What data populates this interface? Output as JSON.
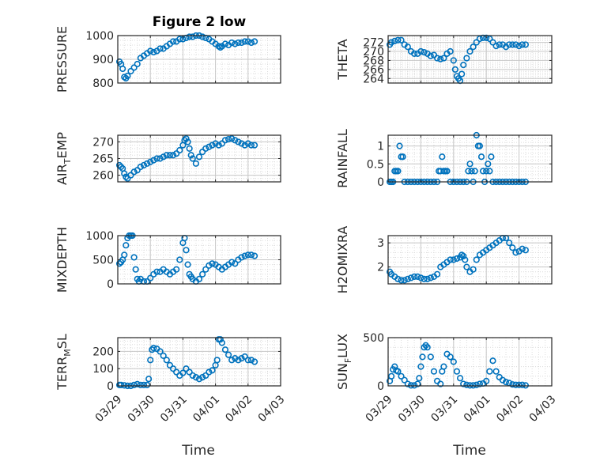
{
  "figure_title": "Figure 2 low",
  "colors": {
    "marker": "#0072BD",
    "axis": "#262626",
    "grid": "#dcdcdc",
    "background": "#ffffff"
  },
  "x_axis": {
    "label": "Time",
    "ticks": [
      "03/29",
      "03/30",
      "03/31",
      "04/01",
      "04/02",
      "04/03"
    ],
    "range": [
      0,
      5
    ]
  },
  "chart_data": [
    {
      "type": "scatter",
      "title": "Figure 2 low",
      "ylabel": "PRESSURE",
      "ylim": [
        800,
        1000
      ],
      "yticks": [
        "800",
        "900",
        "1000"
      ],
      "ytick_values": [
        800,
        900,
        1000
      ],
      "grid": true,
      "series": [
        {
          "marker": "circle"
        }
      ],
      "x": [
        0.05,
        0.1,
        0.15,
        0.2,
        0.25,
        0.3,
        0.4,
        0.5,
        0.6,
        0.7,
        0.8,
        0.9,
        1.0,
        1.1,
        1.2,
        1.3,
        1.4,
        1.5,
        1.6,
        1.7,
        1.8,
        1.9,
        2.0,
        2.1,
        2.2,
        2.3,
        2.4,
        2.5,
        2.6,
        2.7,
        2.8,
        2.9,
        3.0,
        3.1,
        3.15,
        3.2,
        3.3,
        3.4,
        3.5,
        3.6,
        3.7,
        3.8,
        3.9,
        4.0,
        4.1,
        4.2
      ],
      "y": [
        890,
        880,
        860,
        825,
        820,
        830,
        850,
        865,
        880,
        905,
        915,
        925,
        935,
        930,
        935,
        945,
        945,
        955,
        965,
        975,
        975,
        985,
        985,
        990,
        995,
        995,
        1000,
        1000,
        995,
        990,
        985,
        975,
        965,
        955,
        950,
        955,
        965,
        960,
        970,
        965,
        970,
        970,
        975,
        975,
        970,
        975
      ]
    },
    {
      "type": "scatter",
      "ylabel": "THETA",
      "ylim": [
        263,
        273.5
      ],
      "yticks": [
        "264",
        "266",
        "268",
        "270",
        "272"
      ],
      "ytick_values": [
        264,
        266,
        268,
        270,
        272
      ],
      "grid": true,
      "series": [
        {
          "marker": "circle"
        }
      ],
      "x": [
        0.05,
        0.1,
        0.2,
        0.3,
        0.4,
        0.5,
        0.6,
        0.7,
        0.8,
        0.9,
        1.0,
        1.1,
        1.2,
        1.3,
        1.4,
        1.5,
        1.6,
        1.7,
        1.8,
        1.9,
        2.0,
        2.05,
        2.1,
        2.15,
        2.2,
        2.25,
        2.3,
        2.4,
        2.5,
        2.6,
        2.7,
        2.8,
        2.9,
        3.0,
        3.1,
        3.2,
        3.3,
        3.4,
        3.5,
        3.6,
        3.7,
        3.8,
        3.9,
        4.0,
        4.1,
        4.2
      ],
      "y": [
        271.5,
        272,
        272.3,
        272.5,
        272.5,
        271.5,
        271,
        270,
        269.5,
        269.5,
        270,
        269.8,
        269.5,
        269,
        269.2,
        268.5,
        268.3,
        268.5,
        269.5,
        270,
        268,
        266,
        264.5,
        264,
        263.5,
        265,
        267,
        268.5,
        270,
        271,
        272,
        272.8,
        273,
        273,
        272.8,
        272,
        271.2,
        271.5,
        271.5,
        271,
        271.5,
        271.5,
        271.5,
        271.2,
        271.5,
        271.5
      ]
    },
    {
      "type": "scatter",
      "ylabel": "AIR_TEMP",
      "ylim": [
        258,
        272
      ],
      "yticks": [
        "260",
        "265",
        "270"
      ],
      "ytick_values": [
        260,
        265,
        270
      ],
      "grid": true,
      "series": [
        {
          "marker": "circle"
        }
      ],
      "x": [
        0.05,
        0.1,
        0.15,
        0.2,
        0.25,
        0.3,
        0.4,
        0.5,
        0.6,
        0.7,
        0.8,
        0.9,
        1.0,
        1.1,
        1.2,
        1.3,
        1.4,
        1.5,
        1.6,
        1.7,
        1.8,
        1.9,
        2.0,
        2.05,
        2.1,
        2.15,
        2.2,
        2.25,
        2.3,
        2.4,
        2.5,
        2.6,
        2.7,
        2.8,
        2.9,
        3.0,
        3.1,
        3.2,
        3.3,
        3.4,
        3.5,
        3.6,
        3.7,
        3.8,
        3.9,
        4.0,
        4.1,
        4.2
      ],
      "y": [
        263,
        262.5,
        262,
        260.5,
        259.5,
        259,
        260,
        261,
        261.5,
        262.5,
        263,
        263.5,
        264,
        264.5,
        265,
        265,
        265.5,
        266,
        266,
        266,
        266.5,
        267.5,
        269,
        270.5,
        271,
        270,
        268,
        266,
        265,
        263.5,
        265.5,
        267,
        268,
        268.5,
        269,
        269.5,
        269,
        269.5,
        270.5,
        270.8,
        271,
        270.5,
        270,
        269.5,
        269,
        269.5,
        269,
        269
      ]
    },
    {
      "type": "scatter",
      "ylabel": "RAINFALL",
      "ylim": [
        0,
        1.3
      ],
      "yticks": [
        "0",
        "0.5",
        "1"
      ],
      "ytick_values": [
        0,
        0.5,
        1
      ],
      "grid": true,
      "series": [
        {
          "marker": "circle"
        }
      ],
      "x": [
        0.05,
        0.1,
        0.15,
        0.2,
        0.25,
        0.3,
        0.35,
        0.4,
        0.45,
        0.5,
        0.6,
        0.7,
        0.8,
        0.9,
        1.0,
        1.1,
        1.2,
        1.3,
        1.4,
        1.5,
        1.55,
        1.6,
        1.65,
        1.7,
        1.75,
        1.8,
        1.9,
        2.0,
        2.1,
        2.2,
        2.3,
        2.4,
        2.45,
        2.5,
        2.55,
        2.6,
        2.65,
        2.7,
        2.75,
        2.8,
        2.85,
        2.9,
        2.95,
        3.0,
        3.05,
        3.1,
        3.15,
        3.2,
        3.3,
        3.4,
        3.5,
        3.6,
        3.7,
        3.8,
        3.9,
        4.0,
        4.1,
        4.2
      ],
      "y": [
        0,
        0,
        0,
        0.3,
        0.3,
        0.3,
        1.0,
        0.7,
        0.7,
        0,
        0,
        0,
        0,
        0,
        0,
        0,
        0,
        0,
        0,
        0,
        0.3,
        0.3,
        0.7,
        0.3,
        0.3,
        0.3,
        0,
        0,
        0,
        0,
        0,
        0,
        0.3,
        0.5,
        0.3,
        0,
        0.3,
        1.3,
        1.0,
        1.0,
        0.7,
        0.3,
        0,
        0.3,
        0.5,
        0.3,
        0.7,
        0,
        0,
        0,
        0,
        0,
        0,
        0,
        0,
        0,
        0,
        0
      ]
    },
    {
      "type": "scatter",
      "ylabel": "MIXDEPTH",
      "ylim": [
        0,
        1000
      ],
      "yticks": [
        "0",
        "500",
        "1000"
      ],
      "ytick_values": [
        0,
        500,
        1000
      ],
      "grid": true,
      "series": [
        {
          "marker": "circle"
        }
      ],
      "x": [
        0.05,
        0.1,
        0.15,
        0.2,
        0.25,
        0.3,
        0.35,
        0.4,
        0.45,
        0.5,
        0.55,
        0.6,
        0.65,
        0.7,
        0.8,
        0.9,
        1.0,
        1.1,
        1.2,
        1.3,
        1.4,
        1.5,
        1.6,
        1.7,
        1.8,
        1.9,
        2.0,
        2.05,
        2.1,
        2.15,
        2.2,
        2.25,
        2.3,
        2.4,
        2.5,
        2.6,
        2.7,
        2.8,
        2.9,
        3.0,
        3.1,
        3.2,
        3.3,
        3.4,
        3.5,
        3.6,
        3.7,
        3.8,
        3.9,
        4.0,
        4.1,
        4.2
      ],
      "y": [
        420,
        450,
        500,
        600,
        800,
        950,
        1000,
        1000,
        1000,
        550,
        300,
        100,
        50,
        100,
        50,
        50,
        120,
        200,
        250,
        250,
        300,
        250,
        200,
        250,
        300,
        500,
        850,
        950,
        700,
        400,
        200,
        150,
        100,
        50,
        100,
        200,
        300,
        380,
        420,
        400,
        350,
        300,
        350,
        400,
        450,
        420,
        500,
        550,
        580,
        600,
        600,
        580
      ]
    },
    {
      "type": "scatter",
      "ylabel": "H2OMIXRA",
      "ylim": [
        1.3,
        3.3
      ],
      "yticks": [
        "2",
        "3"
      ],
      "ytick_values": [
        2,
        3
      ],
      "grid": true,
      "series": [
        {
          "marker": "circle"
        }
      ],
      "x": [
        0.05,
        0.1,
        0.2,
        0.3,
        0.4,
        0.5,
        0.6,
        0.7,
        0.8,
        0.9,
        1.0,
        1.1,
        1.2,
        1.3,
        1.4,
        1.5,
        1.6,
        1.7,
        1.8,
        1.9,
        2.0,
        2.1,
        2.2,
        2.25,
        2.3,
        2.35,
        2.4,
        2.5,
        2.6,
        2.7,
        2.8,
        2.9,
        3.0,
        3.1,
        3.2,
        3.3,
        3.4,
        3.5,
        3.6,
        3.7,
        3.8,
        3.9,
        4.0,
        4.1,
        4.2
      ],
      "y": [
        1.8,
        1.7,
        1.6,
        1.5,
        1.45,
        1.45,
        1.5,
        1.55,
        1.6,
        1.6,
        1.55,
        1.5,
        1.5,
        1.55,
        1.6,
        1.7,
        2.0,
        2.1,
        2.2,
        2.3,
        2.3,
        2.35,
        2.4,
        2.5,
        2.45,
        2.3,
        2.0,
        1.8,
        1.9,
        2.3,
        2.5,
        2.6,
        2.7,
        2.8,
        2.9,
        3.0,
        3.1,
        3.2,
        3.2,
        3.0,
        2.8,
        2.6,
        2.65,
        2.75,
        2.7
      ]
    },
    {
      "type": "scatter",
      "ylabel": "TERR_MSL",
      "ylim": [
        0,
        280
      ],
      "yticks": [
        "0",
        "100",
        "200"
      ],
      "ytick_values": [
        0,
        100,
        200
      ],
      "grid": true,
      "series": [
        {
          "marker": "circle"
        }
      ],
      "x": [
        0.05,
        0.1,
        0.2,
        0.3,
        0.4,
        0.5,
        0.6,
        0.7,
        0.8,
        0.9,
        0.95,
        1.0,
        1.05,
        1.1,
        1.2,
        1.3,
        1.4,
        1.5,
        1.6,
        1.7,
        1.8,
        1.9,
        2.0,
        2.1,
        2.2,
        2.3,
        2.4,
        2.5,
        2.6,
        2.7,
        2.8,
        2.9,
        3.0,
        3.05,
        3.1,
        3.15,
        3.2,
        3.3,
        3.4,
        3.5,
        3.6,
        3.7,
        3.8,
        3.9,
        4.0,
        4.1,
        4.2
      ],
      "y": [
        5,
        5,
        3,
        0,
        0,
        5,
        10,
        5,
        5,
        5,
        40,
        150,
        210,
        220,
        215,
        200,
        175,
        150,
        120,
        100,
        80,
        60,
        75,
        100,
        80,
        60,
        50,
        40,
        50,
        60,
        80,
        90,
        120,
        150,
        270,
        270,
        250,
        210,
        180,
        150,
        160,
        150,
        160,
        170,
        150,
        150,
        140
      ]
    },
    {
      "type": "scatter",
      "ylabel": "SUN_FLUX",
      "ylim": [
        0,
        500
      ],
      "yticks": [
        "0",
        "500"
      ],
      "ytick_values": [
        0,
        500
      ],
      "grid": true,
      "series": [
        {
          "marker": "circle"
        }
      ],
      "x": [
        0.05,
        0.1,
        0.15,
        0.2,
        0.25,
        0.3,
        0.4,
        0.5,
        0.6,
        0.7,
        0.8,
        0.9,
        0.95,
        1.0,
        1.05,
        1.1,
        1.15,
        1.2,
        1.3,
        1.4,
        1.5,
        1.6,
        1.65,
        1.7,
        1.8,
        1.9,
        2.0,
        2.1,
        2.2,
        2.3,
        2.4,
        2.5,
        2.6,
        2.7,
        2.8,
        2.9,
        3.0,
        3.1,
        3.2,
        3.3,
        3.4,
        3.5,
        3.6,
        3.7,
        3.8,
        3.9,
        4.0,
        4.1,
        4.2
      ],
      "y": [
        50,
        100,
        170,
        200,
        160,
        150,
        100,
        60,
        20,
        5,
        5,
        20,
        80,
        200,
        300,
        400,
        420,
        400,
        300,
        150,
        50,
        20,
        150,
        200,
        330,
        300,
        250,
        150,
        80,
        20,
        10,
        5,
        5,
        10,
        20,
        25,
        50,
        150,
        260,
        150,
        90,
        60,
        40,
        30,
        15,
        10,
        10,
        10,
        5
      ]
    }
  ]
}
